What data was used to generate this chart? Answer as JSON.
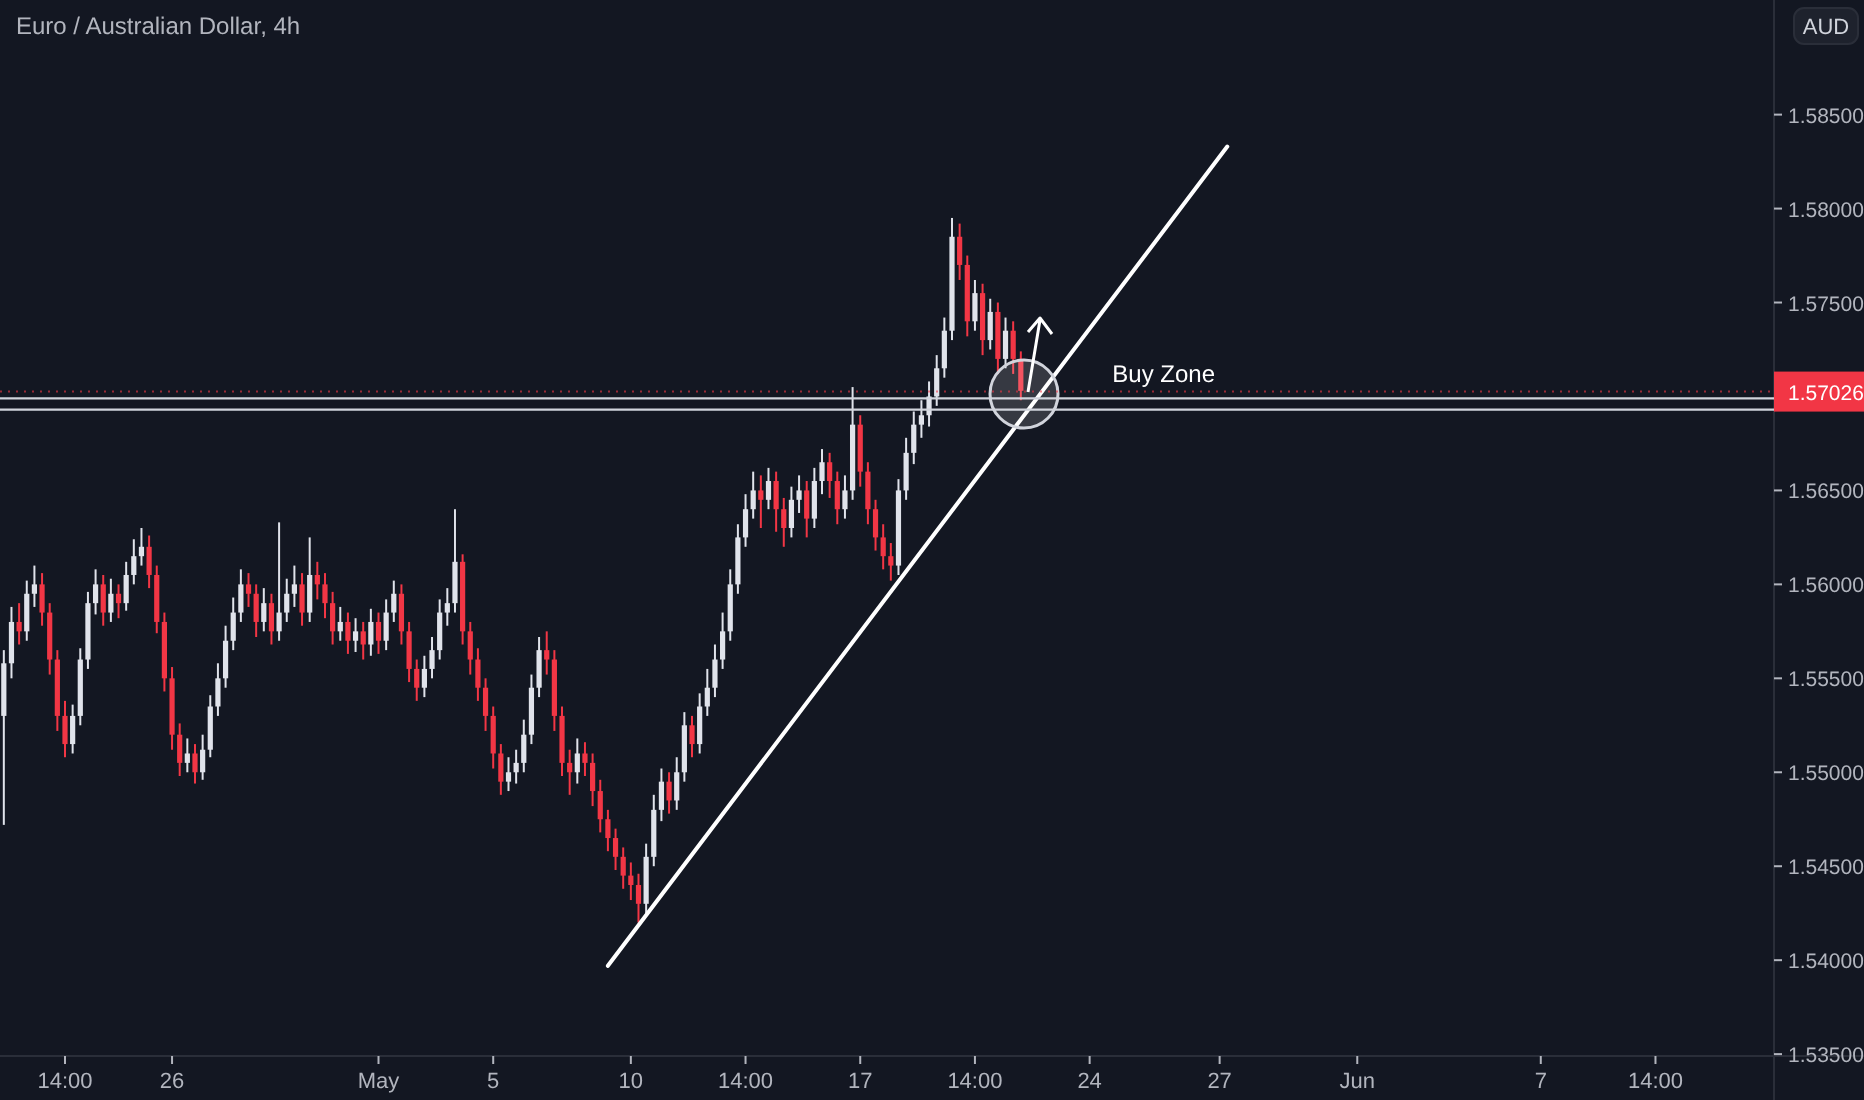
{
  "chart_data": {
    "type": "candlestick",
    "title": "Euro / Australian Dollar, 4h",
    "categories": [
      null,
      null,
      null,
      null,
      null,
      null,
      null,
      null,
      "14:00",
      null,
      null,
      null,
      null,
      null,
      null,
      null,
      null,
      null,
      null,
      null,
      null,
      null,
      "26",
      null,
      null,
      null,
      null,
      null,
      null,
      null,
      null,
      null,
      null,
      null,
      null,
      null,
      null,
      null,
      null,
      null,
      null,
      null,
      null,
      null,
      null,
      null,
      null,
      null,
      null,
      "May",
      null,
      null,
      null,
      null,
      null,
      null,
      null,
      null,
      null,
      null,
      null,
      null,
      null,
      null,
      "5",
      null,
      null,
      null,
      null,
      null,
      null,
      null,
      null,
      null,
      null,
      null,
      null,
      null,
      null,
      null,
      null,
      null,
      "10",
      null,
      null,
      null,
      null,
      null,
      null,
      null,
      null,
      null,
      null,
      null,
      null,
      null,
      null,
      "14:00",
      null,
      null,
      null,
      null,
      null,
      null,
      null,
      null,
      null,
      null,
      null,
      null,
      null,
      null,
      "17",
      null,
      null,
      null,
      null,
      null,
      null,
      null,
      null,
      null,
      null,
      null,
      null,
      null,
      null,
      "14:00",
      null,
      null,
      null,
      null,
      null,
      null,
      null,
      null,
      null,
      null,
      null,
      null,
      null,
      null,
      "24",
      null,
      null,
      null,
      null,
      null,
      null,
      null,
      null,
      null,
      null,
      null,
      null,
      null,
      null,
      null,
      null,
      "27",
      null,
      null,
      null,
      null,
      null,
      null,
      null,
      null,
      null,
      null,
      null,
      null,
      null,
      null,
      null,
      null,
      null,
      "Jun",
      null,
      null,
      null,
      null,
      null,
      null,
      null,
      null,
      null,
      null,
      null,
      null,
      null,
      null,
      null,
      null,
      null,
      null,
      null,
      null,
      null,
      null,
      null,
      "7",
      null,
      null,
      null,
      null,
      null,
      null,
      null,
      null,
      null,
      null,
      null,
      null,
      null,
      null,
      "14:00",
      null,
      null,
      null,
      null,
      null,
      null,
      null,
      null,
      null,
      null,
      null,
      null,
      null,
      null,
      null
    ],
    "ohlc": [
      [
        1.553,
        1.5565,
        1.5472,
        1.5558
      ],
      [
        1.5558,
        1.5588,
        1.555,
        1.558
      ],
      [
        1.558,
        1.559,
        1.5568,
        1.5575
      ],
      [
        1.5575,
        1.5602,
        1.557,
        1.5595
      ],
      [
        1.5595,
        1.561,
        1.5588,
        1.56
      ],
      [
        1.56,
        1.5606,
        1.5578,
        1.5585
      ],
      [
        1.5585,
        1.559,
        1.5552,
        1.556
      ],
      [
        1.556,
        1.5565,
        1.5522,
        1.553
      ],
      [
        1.553,
        1.5538,
        1.5508,
        1.5515
      ],
      [
        1.5515,
        1.5536,
        1.551,
        1.553
      ],
      [
        1.553,
        1.5566,
        1.5525,
        1.556
      ],
      [
        1.556,
        1.5596,
        1.5555,
        1.559
      ],
      [
        1.559,
        1.5608,
        1.5584,
        1.56
      ],
      [
        1.56,
        1.5605,
        1.5578,
        1.5585
      ],
      [
        1.5585,
        1.5603,
        1.558,
        1.5595
      ],
      [
        1.5595,
        1.56,
        1.5582,
        1.559
      ],
      [
        1.559,
        1.5612,
        1.5586,
        1.5605
      ],
      [
        1.5605,
        1.5624,
        1.56,
        1.5615
      ],
      [
        1.5615,
        1.563,
        1.561,
        1.562
      ],
      [
        1.562,
        1.5626,
        1.5598,
        1.5605
      ],
      [
        1.5605,
        1.561,
        1.5574,
        1.558
      ],
      [
        1.558,
        1.5585,
        1.5543,
        1.555
      ],
      [
        1.555,
        1.5556,
        1.5512,
        1.552
      ],
      [
        1.552,
        1.5526,
        1.5498,
        1.5505
      ],
      [
        1.5505,
        1.5518,
        1.55,
        1.551
      ],
      [
        1.551,
        1.5515,
        1.5494,
        1.55
      ],
      [
        1.55,
        1.552,
        1.5496,
        1.5512
      ],
      [
        1.5512,
        1.5541,
        1.5508,
        1.5535
      ],
      [
        1.5535,
        1.5558,
        1.553,
        1.555
      ],
      [
        1.555,
        1.5578,
        1.5545,
        1.557
      ],
      [
        1.557,
        1.5593,
        1.5565,
        1.5585
      ],
      [
        1.5585,
        1.5608,
        1.558,
        1.56
      ],
      [
        1.56,
        1.5606,
        1.5588,
        1.5595
      ],
      [
        1.5595,
        1.56,
        1.5572,
        1.558
      ],
      [
        1.558,
        1.5598,
        1.5575,
        1.559
      ],
      [
        1.559,
        1.5595,
        1.5568,
        1.5575
      ],
      [
        1.5575,
        1.5633,
        1.557,
        1.5585
      ],
      [
        1.5585,
        1.5603,
        1.558,
        1.5595
      ],
      [
        1.5595,
        1.561,
        1.5588,
        1.56
      ],
      [
        1.56,
        1.5606,
        1.5578,
        1.5585
      ],
      [
        1.5585,
        1.5625,
        1.558,
        1.5605
      ],
      [
        1.5605,
        1.5612,
        1.5592,
        1.56
      ],
      [
        1.56,
        1.5606,
        1.5582,
        1.559
      ],
      [
        1.559,
        1.5596,
        1.5568,
        1.5575
      ],
      [
        1.5575,
        1.5588,
        1.557,
        1.558
      ],
      [
        1.558,
        1.5585,
        1.5563,
        1.557
      ],
      [
        1.557,
        1.5582,
        1.5564,
        1.5575
      ],
      [
        1.5575,
        1.558,
        1.556,
        1.5568
      ],
      [
        1.5568,
        1.5587,
        1.5562,
        1.558
      ],
      [
        1.558,
        1.5585,
        1.5563,
        1.557
      ],
      [
        1.557,
        1.5592,
        1.5565,
        1.5585
      ],
      [
        1.5585,
        1.5602,
        1.558,
        1.5595
      ],
      [
        1.5595,
        1.56,
        1.5568,
        1.5575
      ],
      [
        1.5575,
        1.558,
        1.5548,
        1.5555
      ],
      [
        1.5555,
        1.556,
        1.5538,
        1.5545
      ],
      [
        1.5545,
        1.5562,
        1.554,
        1.5555
      ],
      [
        1.5555,
        1.5572,
        1.555,
        1.5565
      ],
      [
        1.5565,
        1.5592,
        1.556,
        1.5585
      ],
      [
        1.5585,
        1.5598,
        1.5578,
        1.559
      ],
      [
        1.559,
        1.564,
        1.5585,
        1.5612
      ],
      [
        1.5612,
        1.5616,
        1.5568,
        1.5575
      ],
      [
        1.5575,
        1.558,
        1.5552,
        1.556
      ],
      [
        1.556,
        1.5566,
        1.5538,
        1.5545
      ],
      [
        1.5545,
        1.555,
        1.5522,
        1.553
      ],
      [
        1.553,
        1.5535,
        1.5502,
        1.551
      ],
      [
        1.551,
        1.5515,
        1.5488,
        1.5495
      ],
      [
        1.5495,
        1.5508,
        1.549,
        1.55
      ],
      [
        1.55,
        1.5512,
        1.5494,
        1.5505
      ],
      [
        1.5505,
        1.5528,
        1.55,
        1.552
      ],
      [
        1.552,
        1.5552,
        1.5515,
        1.5545
      ],
      [
        1.5545,
        1.5572,
        1.554,
        1.5565
      ],
      [
        1.5565,
        1.5575,
        1.5552,
        1.556
      ],
      [
        1.556,
        1.5565,
        1.5522,
        1.553
      ],
      [
        1.553,
        1.5535,
        1.5498,
        1.5505
      ],
      [
        1.5505,
        1.5512,
        1.5488,
        1.55
      ],
      [
        1.55,
        1.5518,
        1.5494,
        1.551
      ],
      [
        1.551,
        1.5516,
        1.5498,
        1.5505
      ],
      [
        1.5505,
        1.551,
        1.5482,
        1.549
      ],
      [
        1.549,
        1.5496,
        1.5468,
        1.5475
      ],
      [
        1.5475,
        1.548,
        1.5458,
        1.5465
      ],
      [
        1.5465,
        1.547,
        1.5448,
        1.5455
      ],
      [
        1.5455,
        1.546,
        1.5438,
        1.5445
      ],
      [
        1.5445,
        1.5452,
        1.5432,
        1.544
      ],
      [
        1.544,
        1.5446,
        1.542,
        1.543
      ],
      [
        1.543,
        1.5462,
        1.5425,
        1.5455
      ],
      [
        1.5455,
        1.5488,
        1.545,
        1.548
      ],
      [
        1.548,
        1.5502,
        1.5474,
        1.5495
      ],
      [
        1.5495,
        1.55,
        1.5478,
        1.5485
      ],
      [
        1.5485,
        1.5508,
        1.548,
        1.55
      ],
      [
        1.55,
        1.5532,
        1.5495,
        1.5525
      ],
      [
        1.5525,
        1.553,
        1.5508,
        1.5515
      ],
      [
        1.5515,
        1.5542,
        1.551,
        1.5535
      ],
      [
        1.5535,
        1.5555,
        1.553,
        1.5545
      ],
      [
        1.5545,
        1.5568,
        1.554,
        1.556
      ],
      [
        1.556,
        1.5585,
        1.5555,
        1.5575
      ],
      [
        1.5575,
        1.5608,
        1.557,
        1.56
      ],
      [
        1.56,
        1.5632,
        1.5595,
        1.5625
      ],
      [
        1.5625,
        1.5648,
        1.562,
        1.564
      ],
      [
        1.564,
        1.566,
        1.5635,
        1.565
      ],
      [
        1.565,
        1.5658,
        1.563,
        1.5645
      ],
      [
        1.5645,
        1.5662,
        1.564,
        1.5655
      ],
      [
        1.5655,
        1.566,
        1.5628,
        1.564
      ],
      [
        1.564,
        1.5646,
        1.562,
        1.563
      ],
      [
        1.563,
        1.5652,
        1.5625,
        1.5645
      ],
      [
        1.5645,
        1.5658,
        1.5638,
        1.565
      ],
      [
        1.565,
        1.5655,
        1.5625,
        1.5635
      ],
      [
        1.5635,
        1.5662,
        1.563,
        1.5655
      ],
      [
        1.5655,
        1.5672,
        1.5648,
        1.5665
      ],
      [
        1.5665,
        1.567,
        1.5646,
        1.5655
      ],
      [
        1.5655,
        1.566,
        1.5632,
        1.564
      ],
      [
        1.564,
        1.5658,
        1.5635,
        1.565
      ],
      [
        1.565,
        1.5705,
        1.5645,
        1.5685
      ],
      [
        1.5685,
        1.569,
        1.5652,
        1.566
      ],
      [
        1.566,
        1.5665,
        1.5632,
        1.564
      ],
      [
        1.564,
        1.5645,
        1.5618,
        1.5625
      ],
      [
        1.5625,
        1.5632,
        1.5608,
        1.5615
      ],
      [
        1.5615,
        1.5622,
        1.5602,
        1.561
      ],
      [
        1.561,
        1.5656,
        1.5605,
        1.565
      ],
      [
        1.565,
        1.5678,
        1.5645,
        1.567
      ],
      [
        1.567,
        1.5692,
        1.5664,
        1.5685
      ],
      [
        1.5685,
        1.5698,
        1.5678,
        1.569
      ],
      [
        1.569,
        1.5708,
        1.5684,
        1.57
      ],
      [
        1.57,
        1.5722,
        1.5695,
        1.5715
      ],
      [
        1.5715,
        1.5742,
        1.571,
        1.5735
      ],
      [
        1.5735,
        1.5795,
        1.573,
        1.5785
      ],
      [
        1.5785,
        1.5792,
        1.5762,
        1.577
      ],
      [
        1.577,
        1.5775,
        1.5732,
        1.574
      ],
      [
        1.574,
        1.5762,
        1.5735,
        1.5755
      ],
      [
        1.5755,
        1.576,
        1.5722,
        1.573
      ],
      [
        1.573,
        1.5752,
        1.5725,
        1.5745
      ],
      [
        1.5745,
        1.575,
        1.5712,
        1.572
      ],
      [
        1.572,
        1.5742,
        1.5715,
        1.5735
      ],
      [
        1.5735,
        1.574,
        1.5712,
        1.572
      ],
      [
        1.572,
        1.5724,
        1.5698,
        1.5703
      ],
      null,
      null,
      null,
      null,
      null,
      null,
      null,
      null,
      null,
      null,
      null,
      null,
      null,
      null,
      null,
      null,
      null,
      null,
      null,
      null,
      null,
      null,
      null,
      null,
      null,
      null,
      null,
      null,
      null,
      null,
      null,
      null,
      null,
      null,
      null,
      null,
      null,
      null,
      null,
      null,
      null,
      null,
      null,
      null,
      null,
      null,
      null,
      null,
      null,
      null,
      null,
      null,
      null,
      null,
      null,
      null,
      null,
      null,
      null,
      null,
      null,
      null,
      null,
      null,
      null,
      null,
      null,
      null,
      null,
      null,
      null,
      null,
      null,
      null,
      null,
      null,
      null,
      null,
      null,
      null,
      null,
      null,
      null,
      null,
      null,
      null,
      null,
      null,
      null,
      null,
      null,
      null,
      null,
      null,
      null,
      null,
      null,
      null
    ],
    "series": [
      {
        "type": "line",
        "color": "#ffffff",
        "values": [
          null,
          null,
          null,
          null,
          null,
          null,
          null,
          null,
          null,
          null,
          null,
          null,
          null,
          null,
          null,
          null,
          null,
          null,
          null,
          null,
          null,
          null,
          null,
          null,
          null,
          null,
          null,
          null,
          null,
          null,
          null,
          null,
          null,
          null,
          null,
          null,
          null,
          null,
          null,
          null,
          null,
          null,
          null,
          null,
          null,
          null,
          null,
          null,
          null,
          null,
          null,
          null,
          null,
          null,
          null,
          null,
          null,
          null,
          null,
          null,
          null,
          null,
          null,
          null,
          null,
          null,
          null,
          null,
          null,
          null,
          null,
          null,
          null,
          null,
          null,
          null,
          null,
          null,
          null,
          1.5397,
          null,
          null,
          null,
          null,
          null,
          null,
          null,
          null,
          null,
          null,
          null,
          null,
          null,
          null,
          null,
          null,
          null,
          null,
          null,
          null,
          null,
          null,
          null,
          null,
          null,
          null,
          null,
          null,
          null,
          null,
          null,
          null,
          null,
          null,
          null,
          null,
          null,
          null,
          null,
          null,
          null,
          null,
          null,
          null,
          null,
          null,
          null,
          null,
          null,
          null,
          null,
          null,
          null,
          null,
          null,
          null,
          null,
          null,
          null,
          null,
          null,
          null,
          null,
          null,
          null,
          null,
          null,
          null,
          null,
          null,
          null,
          null,
          null,
          null,
          null,
          null,
          null,
          null,
          null,
          null,
          1.5833,
          null,
          null,
          null,
          null,
          null,
          null,
          null,
          null,
          null,
          null,
          null,
          null,
          null,
          null,
          null,
          null,
          null,
          null,
          null,
          null,
          null,
          null,
          null,
          null,
          null,
          null,
          null,
          null,
          null,
          null,
          null,
          null,
          null,
          null,
          null,
          null,
          null,
          null,
          null,
          null,
          null,
          null,
          null,
          null,
          null,
          null,
          null,
          null,
          null,
          null,
          null,
          null,
          null,
          null,
          null,
          null,
          null,
          null,
          null,
          null,
          null,
          null,
          null,
          null,
          null,
          null,
          null,
          null,
          null,
          null,
          null
        ]
      }
    ],
    "ylim": [
      1.5349,
      1.5911
    ],
    "yticks": [
      {
        "value": 1.535,
        "label": "1.53500"
      },
      {
        "value": 1.54,
        "label": "1.54000"
      },
      {
        "value": 1.545,
        "label": "1.54500"
      },
      {
        "value": 1.55,
        "label": "1.55000"
      },
      {
        "value": 1.555,
        "label": "1.55500"
      },
      {
        "value": 1.56,
        "label": "1.56000"
      },
      {
        "value": 1.565,
        "label": "1.56500"
      },
      {
        "value": 1.575,
        "label": "1.57500"
      },
      {
        "value": 1.58,
        "label": "1.58000"
      },
      {
        "value": 1.585,
        "label": "1.58500"
      }
    ],
    "ref_lines": [
      {
        "axis": "y",
        "value": 1.57026,
        "label": "1.57026",
        "color": "#f23645",
        "line_style": "dotted"
      },
      {
        "axis": "y",
        "value": 1.5699,
        "label": "Buy Zone",
        "color": "#d1d4dc",
        "line_style": "solid"
      },
      {
        "axis": "y",
        "value": 1.5693,
        "label": null,
        "color": "#d1d4dc",
        "line_style": "solid"
      }
    ],
    "annotations": [
      "AUD"
    ]
  }
}
